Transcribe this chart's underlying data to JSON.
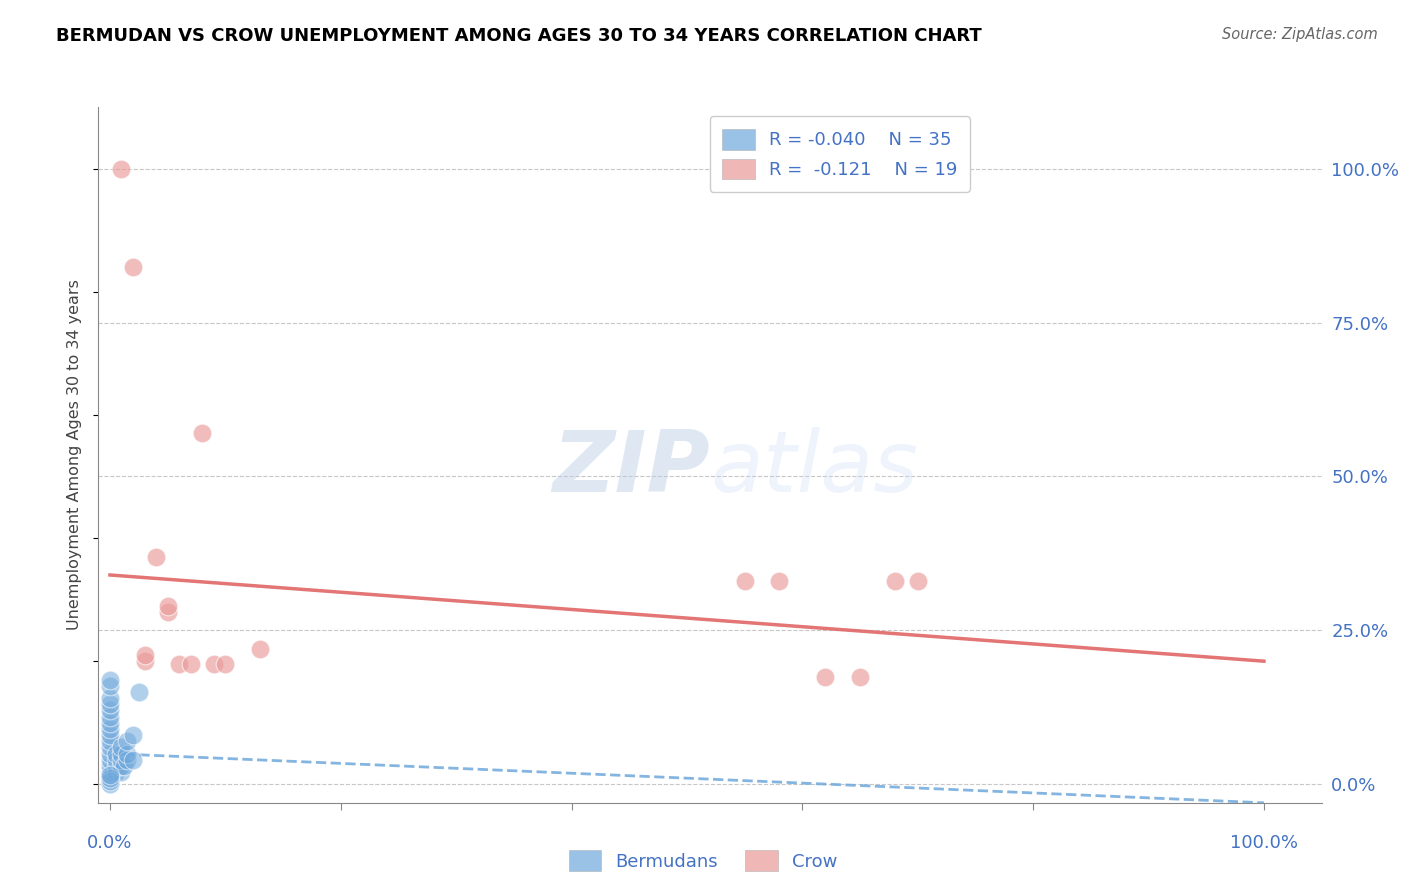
{
  "title": "BERMUDAN VS CROW UNEMPLOYMENT AMONG AGES 30 TO 34 YEARS CORRELATION CHART",
  "source": "Source: ZipAtlas.com",
  "ylabel": "Unemployment Among Ages 30 to 34 years",
  "ytick_values": [
    0,
    25,
    50,
    75,
    100
  ],
  "legend_r_bermudans": "-0.040",
  "legend_n_bermudans": "35",
  "legend_r_crow": "-0.121",
  "legend_n_crow": "19",
  "bermudans_color": "#6fa8dc",
  "crow_color": "#ea9999",
  "bermudans_line_color": "#6fa8dc",
  "crow_line_color": "#e06666",
  "bermudans_scatter_x": [
    0.0,
    0.0,
    0.0,
    0.0,
    0.0,
    0.0,
    0.0,
    0.0,
    0.5,
    0.5,
    0.5,
    0.5,
    1.0,
    1.0,
    1.0,
    1.0,
    1.0,
    1.2,
    1.5,
    1.5,
    1.5,
    2.0,
    2.0,
    2.5,
    0.0,
    0.0,
    0.0,
    0.0,
    0.0,
    0.0,
    0.0,
    0.0,
    0.0,
    0.0,
    0.0
  ],
  "bermudans_scatter_y": [
    0.0,
    2.0,
    3.0,
    4.0,
    5.0,
    6.0,
    7.0,
    8.0,
    2.0,
    3.0,
    4.0,
    5.0,
    2.0,
    3.0,
    4.0,
    5.0,
    6.0,
    3.0,
    4.0,
    5.0,
    7.0,
    4.0,
    8.0,
    15.0,
    0.5,
    1.0,
    1.5,
    9.0,
    10.0,
    11.0,
    12.0,
    13.0,
    14.0,
    16.0,
    17.0
  ],
  "crow_scatter_x": [
    1.0,
    2.0,
    3.0,
    3.0,
    4.0,
    5.0,
    5.0,
    6.0,
    7.0,
    8.0,
    9.0,
    10.0,
    13.0,
    55.0,
    58.0,
    62.0,
    65.0,
    68.0,
    70.0
  ],
  "crow_scatter_y": [
    100.0,
    84.0,
    20.0,
    21.0,
    37.0,
    28.0,
    29.0,
    19.5,
    19.5,
    57.0,
    19.5,
    19.5,
    22.0,
    33.0,
    33.0,
    17.5,
    17.5,
    33.0,
    33.0
  ],
  "bermudans_trend_x": [
    0,
    100
  ],
  "bermudans_trend_y": [
    5.0,
    -3.0
  ],
  "crow_trend_x": [
    0,
    100
  ],
  "crow_trend_y": [
    34.0,
    20.0
  ],
  "xlim": [
    -1,
    105
  ],
  "ylim": [
    -3,
    110
  ],
  "bg_color": "#ffffff",
  "grid_color": "#b0b0b0",
  "axis_label_color": "#4472c4",
  "title_color": "#000000",
  "xtick_positions": [
    0,
    20,
    40,
    60,
    80,
    100
  ]
}
